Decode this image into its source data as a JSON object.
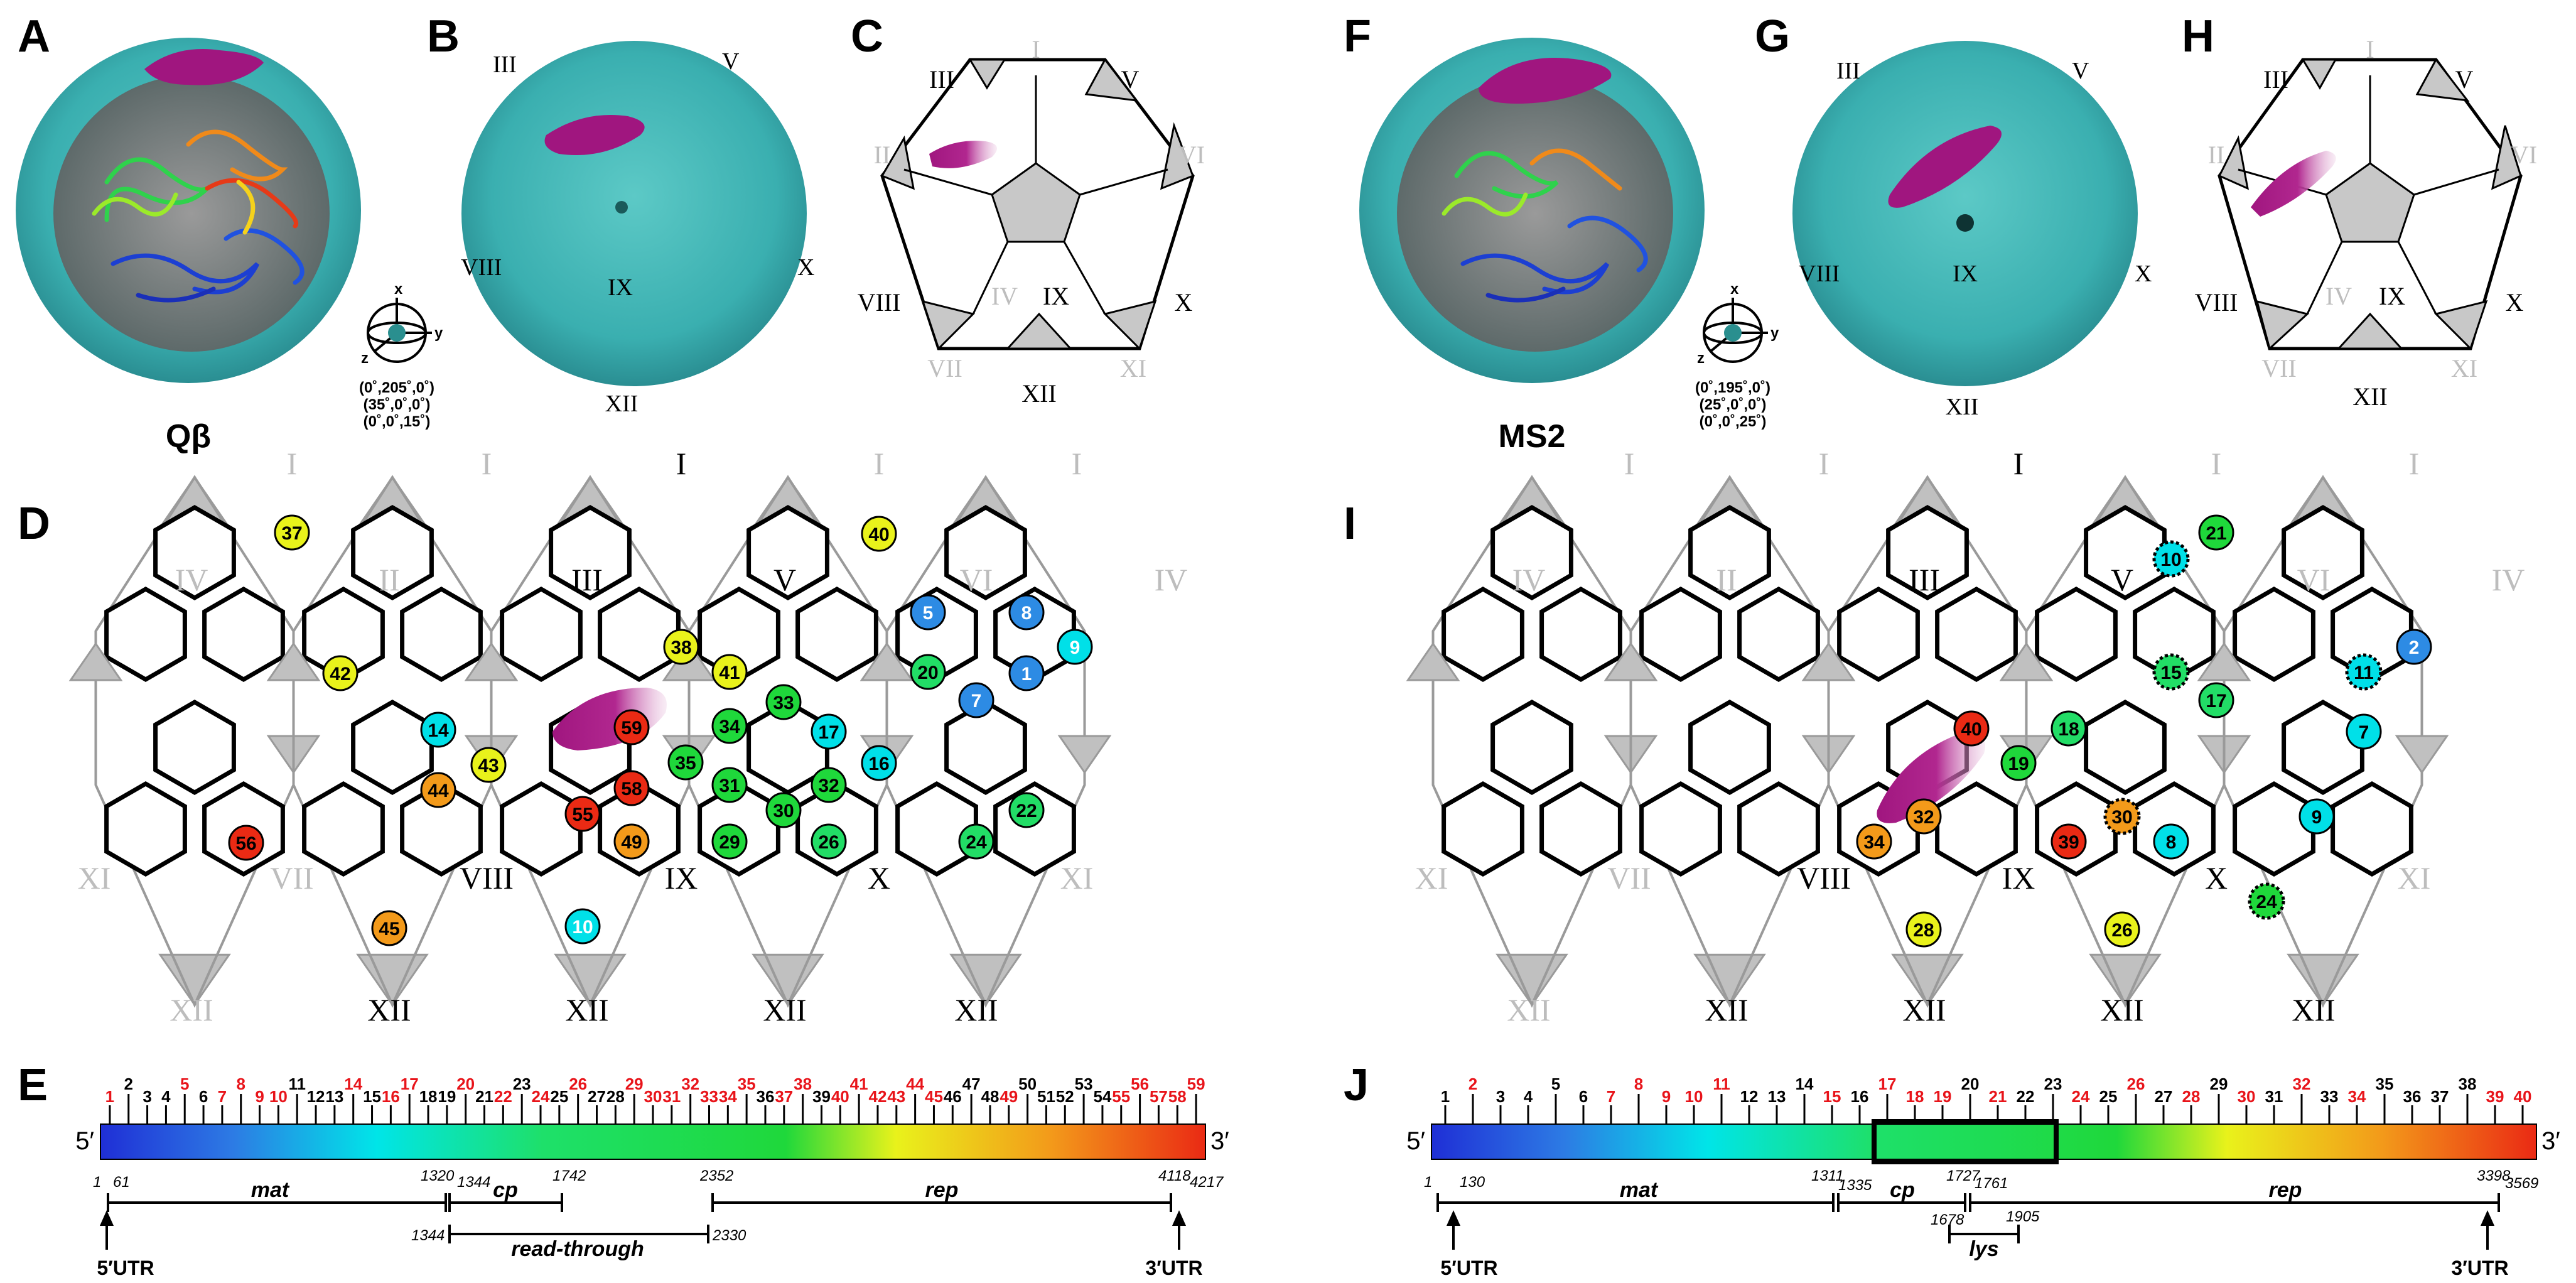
{
  "panel_letters": {
    "A": "A",
    "B": "B",
    "C": "C",
    "D": "D",
    "E": "E",
    "F": "F",
    "G": "G",
    "H": "H",
    "I": "I",
    "J": "J"
  },
  "virus_names": {
    "qb": "Qβ",
    "ms2": "MS2"
  },
  "orientation": {
    "axis_x": "x",
    "axis_y": "y",
    "axis_z": "z",
    "qb": [
      "(0˚,205˚,0˚)",
      "(35˚,0˚,0˚)",
      "(0˚,0˚,15˚)"
    ],
    "ms2": [
      "(0˚,195˚,0˚)",
      "(25˚,0˚,0˚)",
      "(0˚,0˚,25˚)"
    ]
  },
  "roman": {
    "I": "I",
    "II": "II",
    "III": "III",
    "IV": "IV",
    "V": "V",
    "VI": "VI",
    "VII": "VII",
    "VIII": "VIII",
    "IX": "IX",
    "X": "X",
    "XI": "XI",
    "XII": "XII"
  },
  "prime": {
    "five": "5′",
    "three": "3′"
  },
  "qb_genome": {
    "ticks": [
      {
        "n": "1",
        "c": "r"
      },
      {
        "n": "2",
        "c": "k"
      },
      {
        "n": "3",
        "c": "k"
      },
      {
        "n": "4",
        "c": "k"
      },
      {
        "n": "5",
        "c": "r"
      },
      {
        "n": "6",
        "c": "k"
      },
      {
        "n": "7",
        "c": "r"
      },
      {
        "n": "8",
        "c": "r"
      },
      {
        "n": "9",
        "c": "r"
      },
      {
        "n": "10",
        "c": "r"
      },
      {
        "n": "11",
        "c": "k"
      },
      {
        "n": "12",
        "c": "k"
      },
      {
        "n": "13",
        "c": "k"
      },
      {
        "n": "14",
        "c": "r"
      },
      {
        "n": "15",
        "c": "k"
      },
      {
        "n": "16",
        "c": "r"
      },
      {
        "n": "17",
        "c": "r"
      },
      {
        "n": "18",
        "c": "k"
      },
      {
        "n": "19",
        "c": "k"
      },
      {
        "n": "20",
        "c": "r"
      },
      {
        "n": "21",
        "c": "k"
      },
      {
        "n": "22",
        "c": "r"
      },
      {
        "n": "23",
        "c": "k"
      },
      {
        "n": "24",
        "c": "r"
      },
      {
        "n": "25",
        "c": "k"
      },
      {
        "n": "26",
        "c": "r"
      },
      {
        "n": "27",
        "c": "k"
      },
      {
        "n": "28",
        "c": "k"
      },
      {
        "n": "29",
        "c": "r"
      },
      {
        "n": "30",
        "c": "r"
      },
      {
        "n": "31",
        "c": "r"
      },
      {
        "n": "32",
        "c": "r"
      },
      {
        "n": "33",
        "c": "r"
      },
      {
        "n": "34",
        "c": "r"
      },
      {
        "n": "35",
        "c": "r"
      },
      {
        "n": "36",
        "c": "k"
      },
      {
        "n": "37",
        "c": "r"
      },
      {
        "n": "38",
        "c": "r"
      },
      {
        "n": "39",
        "c": "k"
      },
      {
        "n": "40",
        "c": "r"
      },
      {
        "n": "41",
        "c": "r"
      },
      {
        "n": "42",
        "c": "r"
      },
      {
        "n": "43",
        "c": "r"
      },
      {
        "n": "44",
        "c": "r"
      },
      {
        "n": "45",
        "c": "r"
      },
      {
        "n": "46",
        "c": "k"
      },
      {
        "n": "47",
        "c": "k"
      },
      {
        "n": "48",
        "c": "k"
      },
      {
        "n": "49",
        "c": "r"
      },
      {
        "n": "50",
        "c": "k"
      },
      {
        "n": "51",
        "c": "k"
      },
      {
        "n": "52",
        "c": "k"
      },
      {
        "n": "53",
        "c": "k"
      },
      {
        "n": "54",
        "c": "k"
      },
      {
        "n": "55",
        "c": "r"
      },
      {
        "n": "56",
        "c": "r"
      },
      {
        "n": "57",
        "c": "r"
      },
      {
        "n": "58",
        "c": "r"
      },
      {
        "n": "59",
        "c": "r"
      }
    ],
    "genes": {
      "mat": "mat",
      "cp": "cp",
      "read_through": "read-through",
      "rep": "rep",
      "utr5": "5′UTR",
      "utr3": "3′UTR"
    },
    "coords": [
      "1",
      "61",
      "1320",
      "1344",
      "1742",
      "2352",
      "4118",
      "4217",
      "1344",
      "2330"
    ]
  },
  "ms2_genome": {
    "ticks": [
      {
        "n": "1",
        "c": "k"
      },
      {
        "n": "2",
        "c": "r"
      },
      {
        "n": "3",
        "c": "k"
      },
      {
        "n": "4",
        "c": "k"
      },
      {
        "n": "5",
        "c": "k"
      },
      {
        "n": "6",
        "c": "k"
      },
      {
        "n": "7",
        "c": "r"
      },
      {
        "n": "8",
        "c": "r"
      },
      {
        "n": "9",
        "c": "r"
      },
      {
        "n": "10",
        "c": "r"
      },
      {
        "n": "11",
        "c": "r"
      },
      {
        "n": "12",
        "c": "k"
      },
      {
        "n": "13",
        "c": "k"
      },
      {
        "n": "14",
        "c": "k"
      },
      {
        "n": "15",
        "c": "r"
      },
      {
        "n": "16",
        "c": "k"
      },
      {
        "n": "17",
        "c": "r"
      },
      {
        "n": "18",
        "c": "r"
      },
      {
        "n": "19",
        "c": "r"
      },
      {
        "n": "20",
        "c": "k"
      },
      {
        "n": "21",
        "c": "r"
      },
      {
        "n": "22",
        "c": "k"
      },
      {
        "n": "23",
        "c": "k"
      },
      {
        "n": "24",
        "c": "r"
      },
      {
        "n": "25",
        "c": "k"
      },
      {
        "n": "26",
        "c": "r"
      },
      {
        "n": "27",
        "c": "k"
      },
      {
        "n": "28",
        "c": "r"
      },
      {
        "n": "29",
        "c": "k"
      },
      {
        "n": "30",
        "c": "r"
      },
      {
        "n": "31",
        "c": "k"
      },
      {
        "n": "32",
        "c": "r"
      },
      {
        "n": "33",
        "c": "k"
      },
      {
        "n": "34",
        "c": "r"
      },
      {
        "n": "35",
        "c": "k"
      },
      {
        "n": "36",
        "c": "k"
      },
      {
        "n": "37",
        "c": "k"
      },
      {
        "n": "38",
        "c": "k"
      },
      {
        "n": "39",
        "c": "r"
      },
      {
        "n": "40",
        "c": "r"
      }
    ],
    "genes": {
      "mat": "mat",
      "cp": "cp",
      "lys": "lys",
      "rep": "rep",
      "utr5": "5′UTR",
      "utr3": "3′UTR"
    },
    "coords": [
      "1",
      "130",
      "1311",
      "1335",
      "1727",
      "1761",
      "3398",
      "3569",
      "1678",
      "1905"
    ]
  },
  "qb_map_nodes": [
    "37",
    "42",
    "14",
    "43",
    "44",
    "56",
    "45",
    "38",
    "41",
    "59",
    "35",
    "34",
    "31",
    "33",
    "17",
    "58",
    "55",
    "49",
    "30",
    "29",
    "32",
    "26",
    "16",
    "40",
    "5",
    "20",
    "8",
    "9",
    "1",
    "7",
    "22",
    "24",
    "10"
  ],
  "ms2_map_nodes": [
    "10",
    "21",
    "2",
    "11",
    "15",
    "17",
    "18",
    "40",
    "19",
    "7",
    "32",
    "34",
    "30",
    "39",
    "8",
    "9",
    "28",
    "26",
    "24"
  ],
  "colors": {
    "capsid": "#39b6b6",
    "protein": "#a0167f",
    "tile_grey": "#c0c0c0",
    "red_label": "#e8141a"
  }
}
